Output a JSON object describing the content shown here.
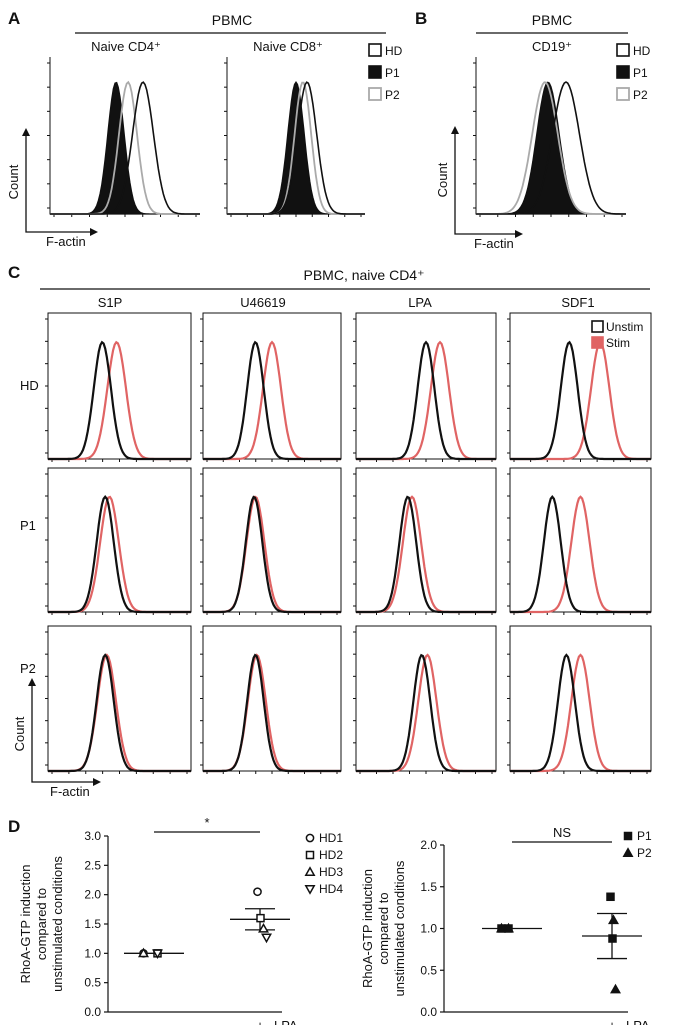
{
  "panels": {
    "A": {
      "letter": "A",
      "header": "PBMC",
      "subpanels": [
        "Naive CD4⁺",
        "Naive CD8⁺"
      ],
      "ylabel": "Count",
      "xlabel": "F-actin",
      "legend": [
        "HD",
        "P1",
        "P2"
      ]
    },
    "B": {
      "letter": "B",
      "header": "PBMC",
      "subpanels": [
        "CD19⁺"
      ],
      "legend": [
        "HD",
        "P1",
        "P2"
      ],
      "ylabel": "Count",
      "xlabel": "F-actin"
    },
    "C": {
      "letter": "C",
      "header": "PBMC, naive CD4⁺",
      "columns": [
        "S1P",
        "U46619",
        "LPA",
        "SDF1"
      ],
      "rows": [
        "HD",
        "P1",
        "P2"
      ],
      "legend": [
        "Unstim",
        "Stim"
      ],
      "ylabel": "Count",
      "xlabel": "F-actin"
    },
    "D": {
      "letter": "D",
      "ylabel_lines": [
        "RhoA-GTP induction",
        "compared to",
        "unstimulated conditions"
      ]
    }
  },
  "chart_data": [
    {
      "type": "line",
      "panel": "A",
      "subpanel": "Naive CD4⁺",
      "series": [
        {
          "name": "HD",
          "style": "open-black",
          "center": 0.62,
          "width": 0.07
        },
        {
          "name": "P1",
          "style": "filled-black",
          "center": 0.44,
          "width": 0.055
        },
        {
          "name": "P2",
          "style": "open-gray",
          "center": 0.52,
          "width": 0.06
        }
      ]
    },
    {
      "type": "line",
      "panel": "A",
      "subpanel": "Naive CD8⁺",
      "series": [
        {
          "name": "HD",
          "style": "open-black",
          "center": 0.58,
          "width": 0.07
        },
        {
          "name": "P1",
          "style": "filled-black",
          "center": 0.5,
          "width": 0.06
        },
        {
          "name": "P2",
          "style": "open-gray",
          "center": 0.55,
          "width": 0.06
        }
      ]
    },
    {
      "type": "line",
      "panel": "B",
      "subpanel": "CD19⁺",
      "series": [
        {
          "name": "HD",
          "style": "open-black",
          "center": 0.6,
          "width": 0.09
        },
        {
          "name": "P1",
          "style": "filled-black",
          "center": 0.48,
          "width": 0.075
        },
        {
          "name": "P2",
          "style": "open-gray",
          "center": 0.46,
          "width": 0.085
        }
      ]
    },
    {
      "type": "line",
      "panel": "C",
      "grid": [
        {
          "row": "HD",
          "col": "S1P",
          "unstim": 0.38,
          "stim": 0.48
        },
        {
          "row": "HD",
          "col": "U46619",
          "unstim": 0.38,
          "stim": 0.5
        },
        {
          "row": "HD",
          "col": "LPA",
          "unstim": 0.5,
          "stim": 0.6
        },
        {
          "row": "HD",
          "col": "SDF1",
          "unstim": 0.42,
          "stim": 0.64
        },
        {
          "row": "P1",
          "col": "S1P",
          "unstim": 0.4,
          "stim": 0.43
        },
        {
          "row": "P1",
          "col": "U46619",
          "unstim": 0.37,
          "stim": 0.38
        },
        {
          "row": "P1",
          "col": "LPA",
          "unstim": 0.37,
          "stim": 0.4
        },
        {
          "row": "P1",
          "col": "SDF1",
          "unstim": 0.3,
          "stim": 0.5
        },
        {
          "row": "P2",
          "col": "S1P",
          "unstim": 0.4,
          "stim": 0.41
        },
        {
          "row": "P2",
          "col": "U46619",
          "unstim": 0.38,
          "stim": 0.39
        },
        {
          "row": "P2",
          "col": "LPA",
          "unstim": 0.47,
          "stim": 0.51
        },
        {
          "row": "P2",
          "col": "SDF1",
          "unstim": 0.4,
          "stim": 0.5
        }
      ]
    },
    {
      "type": "scatter",
      "panel": "D-left",
      "categories": [
        "–",
        "+"
      ],
      "xlabel_extra": "LPA",
      "ylim": [
        0,
        3.0
      ],
      "yticks": [
        "0.0",
        "0.5",
        "1.0",
        "1.5",
        "2.0",
        "2.5",
        "3.0"
      ],
      "significance": "*",
      "series": [
        {
          "name": "HD1",
          "marker": "circle",
          "values": [
            1.0,
            2.05
          ]
        },
        {
          "name": "HD2",
          "marker": "square",
          "values": [
            1.0,
            1.6
          ]
        },
        {
          "name": "HD3",
          "marker": "triangle-up",
          "values": [
            1.0,
            1.42
          ]
        },
        {
          "name": "HD4",
          "marker": "triangle-down",
          "values": [
            1.0,
            1.27
          ]
        }
      ],
      "means": [
        1.0,
        1.58
      ],
      "sem": [
        0.0,
        0.18
      ]
    },
    {
      "type": "scatter",
      "panel": "D-right",
      "categories": [
        "–",
        "+"
      ],
      "xlabel_extra": "LPA",
      "ylim": [
        0,
        2.0
      ],
      "yticks": [
        "0.0",
        "0.5",
        "1.0",
        "1.5",
        "2.0"
      ],
      "significance": "NS",
      "series": [
        {
          "name": "P1",
          "marker": "square",
          "values": [
            [
              1.0,
              1.0
            ],
            [
              1.38,
              0.88
            ]
          ]
        },
        {
          "name": "P2",
          "marker": "triangle-up",
          "values": [
            [
              1.0,
              1.0
            ],
            [
              1.1,
              0.27
            ]
          ]
        }
      ],
      "means": [
        1.0,
        0.91
      ],
      "sem": [
        0.0,
        0.27
      ]
    }
  ]
}
